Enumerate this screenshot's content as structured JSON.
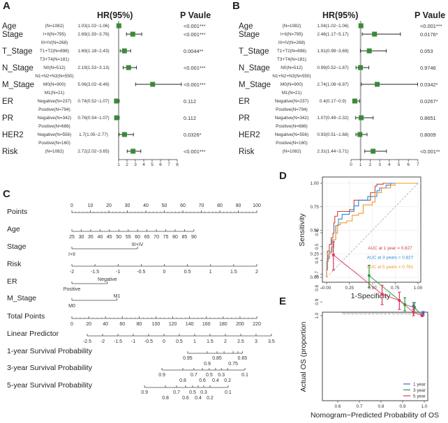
{
  "panel_labels": [
    "A",
    "B",
    "C",
    "D",
    "E"
  ],
  "chart_data": [
    {
      "type": "forest",
      "panel": "A",
      "header_hr": "HR(95%)",
      "header_p": "P Vaule",
      "xlim": [
        1,
        8
      ],
      "xticks": [
        "1",
        "2",
        "3",
        "4",
        "5",
        "6",
        "7",
        "8"
      ],
      "rows": [
        {
          "label": "Age",
          "n": "(N=1082)",
          "hr_text": "1.03(1.02~1.06)",
          "hr": 1.03,
          "lo": 1.02,
          "hi": 1.06,
          "p": "<0.001***"
        },
        {
          "label": "Stage",
          "n": "I+II(N=795)",
          "ref": "III+IV(N=268)",
          "hr_text": "2.69(1.93~3.76)",
          "hr": 2.69,
          "lo": 1.93,
          "hi": 3.76,
          "p": "<0.001***"
        },
        {
          "label": "T_Stage",
          "n": "T1+T2(N=898)",
          "ref": "T3+T4(N=181)",
          "hr_text": "1.69(1.18~2.43)",
          "hr": 1.69,
          "lo": 1.18,
          "hi": 2.43,
          "p": "0.0044**"
        },
        {
          "label": "N_Stage",
          "n": "N0(N=512)",
          "ref": "N1+N2+N3(N=550)",
          "hr_text": "2.19(1.53~3.13)",
          "hr": 2.19,
          "lo": 1.53,
          "hi": 3.13,
          "p": "<0.001***"
        },
        {
          "label": "M_Stage",
          "n": "M0(N=900)",
          "ref": "M1(N=21)",
          "hr_text": "5.06(3.02~8.49)",
          "hr": 5.06,
          "lo": 3.02,
          "hi": 8.49,
          "p": "<0.001***"
        },
        {
          "label": "ER",
          "n": "Negative(N=237)",
          "ref": "Positive(N=794)",
          "hr_text": "0.74(0.52~1.07)",
          "hr": 0.74,
          "lo": 0.52,
          "hi": 1.07,
          "p": "0.112"
        },
        {
          "label": "PR",
          "n": "Negative(N=342)",
          "ref": "Positive(N=686)",
          "hr_text": "0.76(0.54~1.07)",
          "hr": 0.76,
          "lo": 0.54,
          "hi": 1.07,
          "p": "0.112"
        },
        {
          "label": "HER2",
          "n": "Negative(N=556)",
          "ref": "Positive(N=160)",
          "hr_text": "1.7(1.05~2.77)",
          "hr": 1.7,
          "lo": 1.05,
          "hi": 2.77,
          "p": "0.0326*"
        },
        {
          "label": "Risk",
          "n": "(N=1082)",
          "hr_text": "2.72(2.02~3.65)",
          "hr": 2.72,
          "lo": 2.02,
          "hi": 3.65,
          "p": "<0.001***"
        }
      ]
    },
    {
      "type": "forest",
      "panel": "B",
      "header_hr": "HR(95%)",
      "header_p": "P Vaule",
      "xlim": [
        0,
        7
      ],
      "xticks": [
        "0",
        "1",
        "2",
        "3",
        "4",
        "5",
        "6",
        "7"
      ],
      "rows": [
        {
          "label": "Age",
          "n": "(N=1082)",
          "hr_text": "1.04(1.02~1.06)",
          "hr": 1.04,
          "lo": 1.02,
          "hi": 1.06,
          "p": "<0.001***"
        },
        {
          "label": "Stage",
          "n": "I+II(N=795)",
          "ref": "III+IV(N=268)",
          "hr_text": "2.46(1.17~5.17)",
          "hr": 2.46,
          "lo": 1.17,
          "hi": 5.17,
          "p": "0.0176*"
        },
        {
          "label": "T_Stage",
          "n": "T1+T2(N=898)",
          "ref": "T3+T4(N=181)",
          "hr_text": "1.91(0.99~3.69)",
          "hr": 1.91,
          "lo": 0.99,
          "hi": 3.69,
          "p": "0.053"
        },
        {
          "label": "N_Stage",
          "n": "N0(N=512)",
          "ref": "N1+N2+N3(N=550)",
          "hr_text": "0.99(0.52~1.87)",
          "hr": 0.99,
          "lo": 0.52,
          "hi": 1.87,
          "p": "0.9746"
        },
        {
          "label": "M_Stage",
          "n": "M0(N=900)",
          "ref": "M1(N=21)",
          "hr_text": "2.74(1.08~6.97)",
          "hr": 2.74,
          "lo": 1.08,
          "hi": 6.97,
          "p": "0.0342*"
        },
        {
          "label": "ER",
          "n": "Negative(N=237)",
          "ref": "Positive(N=794)",
          "hr_text": "0.4(0.17~0.9)",
          "hr": 0.4,
          "lo": 0.17,
          "hi": 0.9,
          "p": "0.0267*"
        },
        {
          "label": "PR",
          "n": "Negative(N=342)",
          "ref": "Positive(N=686)",
          "hr_text": "1.07(0.49~2.32)",
          "hr": 1.07,
          "lo": 0.49,
          "hi": 2.32,
          "p": "0.8651"
        },
        {
          "label": "HER2",
          "n": "Negative(N=556)",
          "ref": "Positive(N=160)",
          "hr_text": "0.93(0.51~1.68)",
          "hr": 0.93,
          "lo": 0.51,
          "hi": 1.68,
          "p": "0.8009"
        },
        {
          "label": "Risk",
          "n": "(N=1082)",
          "hr_text": "2.31(1.44~3.71)",
          "hr": 2.31,
          "lo": 1.44,
          "hi": 3.71,
          "p": "<0.001**"
        }
      ]
    },
    {
      "type": "nomogram",
      "panel": "C",
      "rows": [
        {
          "label": "Points",
          "ticks": [
            [
              0,
              "0"
            ],
            [
              10,
              "10"
            ],
            [
              20,
              "20"
            ],
            [
              30,
              "30"
            ],
            [
              40,
              "40"
            ],
            [
              50,
              "50"
            ],
            [
              60,
              "60"
            ],
            [
              70,
              "70"
            ],
            [
              80,
              "80"
            ],
            [
              90,
              "90"
            ],
            [
              100,
              "100"
            ]
          ],
          "minor": true,
          "above": true
        },
        {
          "label": "Age",
          "ticks": [
            [
              0,
              "25"
            ],
            [
              5.08,
              "30"
            ],
            [
              10.15,
              "35"
            ],
            [
              15.23,
              "40"
            ],
            [
              20.3,
              "45"
            ],
            [
              25.38,
              "50"
            ],
            [
              30.46,
              "55"
            ],
            [
              35.53,
              "60"
            ],
            [
              40.61,
              "65"
            ],
            [
              45.69,
              "70"
            ],
            [
              50.76,
              "75"
            ],
            [
              55.84,
              "80"
            ],
            [
              60.92,
              "85"
            ],
            [
              66,
              "90"
            ]
          ]
        },
        {
          "label": "Stage",
          "ticks": [
            [
              0,
              "I+II"
            ],
            [
              35.5,
              "III+IV"
            ]
          ],
          "alt": true
        },
        {
          "label": "Risk",
          "ticks": [
            [
              0,
              "-2"
            ],
            [
              12.5,
              "-1.5"
            ],
            [
              25,
              "-1"
            ],
            [
              37.5,
              "-0.5"
            ],
            [
              50,
              "0"
            ],
            [
              62.5,
              "0.5"
            ],
            [
              75,
              "1"
            ],
            [
              87.5,
              "1.5"
            ],
            [
              100,
              "2"
            ]
          ]
        },
        {
          "label": "ER",
          "ticks": [
            [
              0,
              "Positive"
            ],
            [
              19.2,
              "Negative"
            ]
          ],
          "alt": true
        },
        {
          "label": "M_Stage",
          "ticks": [
            [
              0,
              "M0"
            ],
            [
              24.4,
              "M1"
            ]
          ],
          "alt": true
        },
        {
          "label": "Total Points",
          "ticks": [
            [
              0,
              "0"
            ],
            [
              9.09,
              "20"
            ],
            [
              18.18,
              "40"
            ],
            [
              27.27,
              "60"
            ],
            [
              36.36,
              "80"
            ],
            [
              45.45,
              "100"
            ],
            [
              54.55,
              "120"
            ],
            [
              63.64,
              "140"
            ],
            [
              72.73,
              "160"
            ],
            [
              81.82,
              "180"
            ],
            [
              90.91,
              "200"
            ],
            [
              100,
              "220"
            ]
          ],
          "minor": true
        },
        {
          "label": "Linear Predictor",
          "ticks": [
            [
              8.3,
              "-2.5"
            ],
            [
              16.6,
              "-2"
            ],
            [
              24.9,
              "-1.5"
            ],
            [
              33.2,
              "-1"
            ],
            [
              41.5,
              "-0.5"
            ],
            [
              49.8,
              "0"
            ],
            [
              58.1,
              "0.5"
            ],
            [
              66.4,
              "1"
            ],
            [
              74.7,
              "1.5"
            ],
            [
              83,
              "2"
            ],
            [
              91.3,
              "2.5"
            ],
            [
              99.6,
              "3"
            ],
            [
              107.9,
              "3.5"
            ]
          ]
        },
        {
          "label": "1-year Survival Probability",
          "ticks": [
            [
              62.6,
              "0.95"
            ],
            [
              73.2,
              "0.9"
            ],
            [
              78.5,
              "0.85"
            ],
            [
              82.3,
              ""
            ],
            [
              87.2,
              "0.75"
            ],
            [
              89.8,
              ""
            ],
            [
              92.2,
              "0.65"
            ]
          ]
        },
        {
          "label": "3-year Survival Probability",
          "ticks": [
            [
              48.7,
              "0.9"
            ],
            [
              60,
              "0.8"
            ],
            [
              66,
              "0.7"
            ],
            [
              70.6,
              "0.6"
            ],
            [
              74.3,
              "0.5"
            ],
            [
              77.7,
              "0.4"
            ],
            [
              80.8,
              "0.3"
            ],
            [
              84.2,
              "0.2"
            ],
            [
              93.6,
              "0.1"
            ]
          ]
        },
        {
          "label": "5-year Survival Probability",
          "ticks": [
            [
              39.3,
              "0.9"
            ],
            [
              50.6,
              "0.8"
            ],
            [
              56.6,
              "0.7"
            ],
            [
              61.5,
              "0.6"
            ],
            [
              65.3,
              "0.5"
            ],
            [
              68.3,
              "0.4"
            ],
            [
              71.3,
              "0.3"
            ],
            [
              74.7,
              "0.2"
            ],
            [
              84.5,
              "0.1"
            ]
          ]
        }
      ]
    },
    {
      "type": "line",
      "panel": "D",
      "xlabel": "1-Specificity",
      "ylabel": "Sensitivity",
      "xlim": [
        0,
        1
      ],
      "ylim": [
        0,
        1
      ],
      "xticks": [
        "0.00",
        "0.25",
        "0.50",
        "0.75",
        "1.00"
      ],
      "yticks": [
        "0.00",
        "0.25",
        "0.50",
        "0.75",
        "1.00"
      ],
      "grid": true,
      "series": [
        {
          "name": "AUC at 1 year = 0.827",
          "color": "#c9453a",
          "points": [
            [
              0,
              0
            ],
            [
              0,
              0.17
            ],
            [
              0.01,
              0.28
            ],
            [
              0.03,
              0.35
            ],
            [
              0.05,
              0.42
            ],
            [
              0.07,
              0.47
            ],
            [
              0.08,
              0.58
            ],
            [
              0.09,
              0.65
            ],
            [
              0.12,
              0.7
            ],
            [
              0.25,
              0.72
            ],
            [
              0.3,
              0.82
            ],
            [
              0.47,
              0.82
            ],
            [
              0.48,
              0.9
            ],
            [
              0.53,
              0.97
            ],
            [
              0.55,
              0.99
            ],
            [
              0.62,
              1
            ],
            [
              1,
              1
            ]
          ]
        },
        {
          "name": "AUC at 3 years = 0.827",
          "color": "#2b8ad8",
          "points": [
            [
              0,
              0
            ],
            [
              0,
              0.08
            ],
            [
              0.01,
              0.2
            ],
            [
              0.03,
              0.27
            ],
            [
              0.06,
              0.4
            ],
            [
              0.1,
              0.55
            ],
            [
              0.13,
              0.62
            ],
            [
              0.17,
              0.67
            ],
            [
              0.25,
              0.7
            ],
            [
              0.3,
              0.76
            ],
            [
              0.35,
              0.82
            ],
            [
              0.45,
              0.86
            ],
            [
              0.55,
              0.92
            ],
            [
              0.58,
              0.95
            ],
            [
              0.65,
              0.98
            ],
            [
              0.7,
              1
            ],
            [
              1,
              1
            ]
          ]
        },
        {
          "name": "AUC at 5 years = 0.781",
          "color": "#f0962a",
          "points": [
            [
              0,
              0
            ],
            [
              0,
              0.17
            ],
            [
              0.02,
              0.25
            ],
            [
              0.05,
              0.32
            ],
            [
              0.08,
              0.4
            ],
            [
              0.1,
              0.47
            ],
            [
              0.12,
              0.56
            ],
            [
              0.15,
              0.58
            ],
            [
              0.22,
              0.6
            ],
            [
              0.28,
              0.66
            ],
            [
              0.35,
              0.68
            ],
            [
              0.4,
              0.77
            ],
            [
              0.5,
              0.8
            ],
            [
              0.53,
              0.9
            ],
            [
              0.6,
              0.95
            ],
            [
              0.7,
              0.98
            ],
            [
              0.75,
              1
            ],
            [
              1,
              1
            ]
          ]
        }
      ],
      "legend": "bottom-right"
    },
    {
      "type": "line",
      "panel": "E",
      "xlabel": "Nomogram−Predicted Probability of OS",
      "ylabel": "Actual OS (proportion",
      "xlim": [
        0.53,
        1.02
      ],
      "ylim": [
        0.38,
        1.02
      ],
      "xticks": [
        "0.6",
        "0.7",
        "0.8",
        "0.9",
        "1.0"
      ],
      "yticks": [
        "0.4",
        "0.5",
        "0.6",
        "0.7",
        "0.8",
        "0.9",
        "1.0"
      ],
      "series": [
        {
          "name": "1 year",
          "color": "#4a63d0",
          "points": [
            [
              0.95,
              0.93,
              0.905,
              0.955
            ],
            [
              0.99,
              1.0,
              0.99,
              1.0
            ],
            [
              0.995,
              0.985,
              0.97,
              1.0
            ]
          ]
        },
        {
          "name": "3 year",
          "color": "#2a9a3a",
          "points": [
            [
              0.745,
              0.71,
              0.635,
              0.795
            ],
            [
              0.91,
              0.92,
              0.87,
              0.965
            ],
            [
              0.955,
              0.94,
              0.905,
              0.975
            ],
            [
              0.99,
              1.0,
              0.99,
              1.0
            ]
          ]
        },
        {
          "name": "5 year",
          "color": "#e8305a",
          "points": [
            [
              0.58,
              0.56,
              0.465,
              0.67
            ],
            [
              0.805,
              0.845,
              0.78,
              0.92
            ],
            [
              0.885,
              0.89,
              0.83,
              0.955
            ],
            [
              0.95,
              0.975,
              0.935,
              1.0
            ],
            [
              0.99,
              1.0,
              0.99,
              1.0
            ]
          ]
        }
      ],
      "legend": "bottom-right"
    }
  ],
  "colors": {
    "forest_marker": "#3a8a3a",
    "ref_line": "#aaaaaa"
  }
}
